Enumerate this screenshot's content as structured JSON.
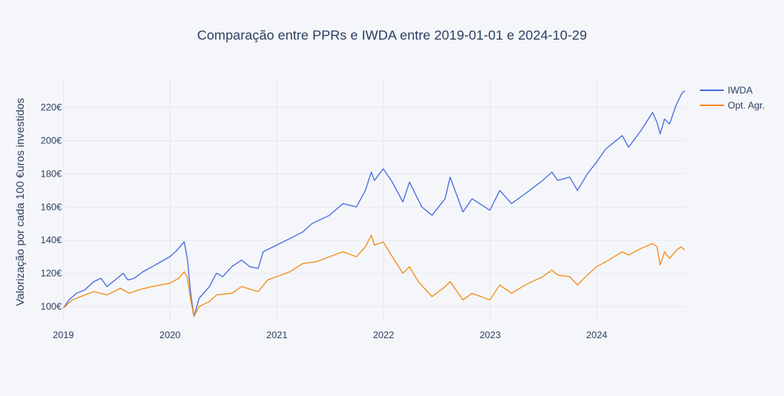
{
  "chart_data": {
    "type": "line",
    "title": "Comparação entre PPRs e IWDA entre 2019-01-01 e 2024-10-29",
    "xlabel": "",
    "ylabel": "Valorização por cada 100 €uros investidos",
    "x_ticks": [
      "2019",
      "2020",
      "2021",
      "2022",
      "2023",
      "2024"
    ],
    "y_ticks": [
      "100€",
      "120€",
      "140€",
      "160€",
      "180€",
      "200€",
      "220€"
    ],
    "xlim": [
      "2019-01-01",
      "2024-10-29"
    ],
    "ylim": [
      90,
      237
    ],
    "grid": true,
    "legend_position": "top-right",
    "series": [
      {
        "name": "IWDA",
        "color": "#4a6ee0",
        "points": [
          [
            "2019-01-01",
            99
          ],
          [
            "2019-01-20",
            104
          ],
          [
            "2019-02-15",
            108
          ],
          [
            "2019-03-15",
            110
          ],
          [
            "2019-04-15",
            115
          ],
          [
            "2019-05-10",
            117
          ],
          [
            "2019-05-30",
            112
          ],
          [
            "2019-06-20",
            115
          ],
          [
            "2019-07-25",
            120
          ],
          [
            "2019-08-10",
            116
          ],
          [
            "2019-09-01",
            117
          ],
          [
            "2019-10-01",
            121
          ],
          [
            "2019-11-01",
            124
          ],
          [
            "2019-12-01",
            127
          ],
          [
            "2019-12-31",
            130
          ],
          [
            "2020-01-20",
            133
          ],
          [
            "2020-02-19",
            139
          ],
          [
            "2020-03-01",
            128
          ],
          [
            "2020-03-12",
            108
          ],
          [
            "2020-03-23",
            94
          ],
          [
            "2020-04-10",
            105
          ],
          [
            "2020-05-15",
            112
          ],
          [
            "2020-06-08",
            120
          ],
          [
            "2020-06-30",
            118
          ],
          [
            "2020-07-30",
            124
          ],
          [
            "2020-09-02",
            128
          ],
          [
            "2020-09-30",
            124
          ],
          [
            "2020-10-29",
            123
          ],
          [
            "2020-11-15",
            133
          ],
          [
            "2020-12-31",
            137
          ],
          [
            "2021-02-15",
            141
          ],
          [
            "2021-03-31",
            145
          ],
          [
            "2021-05-01",
            150
          ],
          [
            "2021-06-30",
            155
          ],
          [
            "2021-08-15",
            162
          ],
          [
            "2021-09-30",
            160
          ],
          [
            "2021-10-31",
            170
          ],
          [
            "2021-11-20",
            181
          ],
          [
            "2021-12-01",
            176
          ],
          [
            "2021-12-31",
            183
          ],
          [
            "2022-01-31",
            175
          ],
          [
            "2022-03-08",
            163
          ],
          [
            "2022-03-31",
            175
          ],
          [
            "2022-05-12",
            160
          ],
          [
            "2022-06-16",
            155
          ],
          [
            "2022-07-31",
            165
          ],
          [
            "2022-08-17",
            178
          ],
          [
            "2022-09-30",
            157
          ],
          [
            "2022-10-31",
            165
          ],
          [
            "2022-12-31",
            158
          ],
          [
            "2023-02-03",
            170
          ],
          [
            "2023-03-15",
            162
          ],
          [
            "2023-05-01",
            168
          ],
          [
            "2023-06-30",
            176
          ],
          [
            "2023-07-31",
            181
          ],
          [
            "2023-08-20",
            176
          ],
          [
            "2023-09-30",
            178
          ],
          [
            "2023-10-27",
            170
          ],
          [
            "2023-11-30",
            180
          ],
          [
            "2023-12-31",
            187
          ],
          [
            "2024-02-01",
            195
          ],
          [
            "2024-03-28",
            203
          ],
          [
            "2024-04-19",
            196
          ],
          [
            "2024-05-31",
            206
          ],
          [
            "2024-07-10",
            217
          ],
          [
            "2024-07-25",
            211
          ],
          [
            "2024-08-05",
            204
          ],
          [
            "2024-08-20",
            213
          ],
          [
            "2024-09-06",
            210
          ],
          [
            "2024-09-30",
            222
          ],
          [
            "2024-10-20",
            229
          ],
          [
            "2024-10-29",
            230
          ]
        ]
      },
      {
        "name": "Opt. Agr.",
        "color": "#f28e1c",
        "points": [
          [
            "2019-01-01",
            99
          ],
          [
            "2019-01-31",
            104
          ],
          [
            "2019-03-01",
            106
          ],
          [
            "2019-04-15",
            109
          ],
          [
            "2019-05-30",
            107
          ],
          [
            "2019-07-15",
            111
          ],
          [
            "2019-08-15",
            108
          ],
          [
            "2019-09-15",
            110
          ],
          [
            "2019-10-31",
            112
          ],
          [
            "2019-12-31",
            114
          ],
          [
            "2020-01-31",
            117
          ],
          [
            "2020-02-19",
            121
          ],
          [
            "2020-03-01",
            117
          ],
          [
            "2020-03-12",
            104
          ],
          [
            "2020-03-23",
            94
          ],
          [
            "2020-04-10",
            100
          ],
          [
            "2020-05-15",
            103
          ],
          [
            "2020-06-08",
            107
          ],
          [
            "2020-07-31",
            108
          ],
          [
            "2020-09-02",
            112
          ],
          [
            "2020-10-29",
            109
          ],
          [
            "2020-11-30",
            116
          ],
          [
            "2020-12-31",
            118
          ],
          [
            "2021-02-15",
            121
          ],
          [
            "2021-03-31",
            126
          ],
          [
            "2021-05-15",
            127
          ],
          [
            "2021-06-30",
            130
          ],
          [
            "2021-08-15",
            133
          ],
          [
            "2021-09-30",
            130
          ],
          [
            "2021-10-31",
            136
          ],
          [
            "2021-11-20",
            143
          ],
          [
            "2021-12-01",
            137
          ],
          [
            "2021-12-31",
            139
          ],
          [
            "2022-01-31",
            130
          ],
          [
            "2022-03-08",
            120
          ],
          [
            "2022-03-31",
            124
          ],
          [
            "2022-04-30",
            115
          ],
          [
            "2022-06-16",
            106
          ],
          [
            "2022-07-31",
            112
          ],
          [
            "2022-08-17",
            115
          ],
          [
            "2022-09-30",
            104
          ],
          [
            "2022-10-31",
            108
          ],
          [
            "2022-12-31",
            104
          ],
          [
            "2023-02-03",
            113
          ],
          [
            "2023-03-15",
            108
          ],
          [
            "2023-05-01",
            113
          ],
          [
            "2023-06-30",
            118
          ],
          [
            "2023-07-31",
            122
          ],
          [
            "2023-08-20",
            119
          ],
          [
            "2023-09-30",
            118
          ],
          [
            "2023-10-27",
            113
          ],
          [
            "2023-11-30",
            119
          ],
          [
            "2023-12-31",
            124
          ],
          [
            "2024-02-01",
            127
          ],
          [
            "2024-03-28",
            133
          ],
          [
            "2024-04-19",
            131
          ],
          [
            "2024-05-31",
            135
          ],
          [
            "2024-07-10",
            138
          ],
          [
            "2024-07-25",
            136
          ],
          [
            "2024-08-05",
            125
          ],
          [
            "2024-08-20",
            133
          ],
          [
            "2024-09-06",
            129
          ],
          [
            "2024-09-30",
            134
          ],
          [
            "2024-10-15",
            136
          ],
          [
            "2024-10-29",
            134
          ]
        ]
      }
    ]
  }
}
